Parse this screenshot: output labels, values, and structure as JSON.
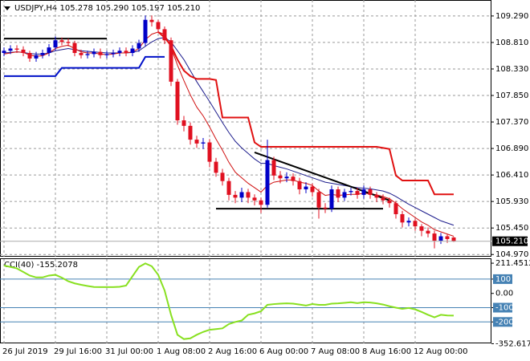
{
  "chart_data": [
    {
      "type": "candlestick",
      "title": "USDJPY,H4  105.278 105.290 105.197 105.210",
      "categories": [
        "26 Jul 2019",
        null,
        null,
        null,
        null,
        null,
        null,
        null,
        "29 Jul 16:00",
        null,
        null,
        null,
        null,
        null,
        null,
        null,
        "31 Jul 00:00",
        null,
        null,
        null,
        null,
        null,
        null,
        null,
        "1 Aug 08:00",
        null,
        null,
        null,
        null,
        null,
        null,
        null,
        "2 Aug 16:00",
        null,
        null,
        null,
        null,
        null,
        null,
        null,
        "6 Aug 00:00",
        null,
        null,
        null,
        null,
        null,
        null,
        null,
        "7 Aug 08:00",
        null,
        null,
        null,
        null,
        null,
        null,
        null,
        "8 Aug 16:00",
        null,
        null,
        null,
        null,
        null,
        null,
        null,
        "12 Aug 00:00",
        null,
        null,
        null,
        null,
        null,
        null
      ],
      "open": [
        108.62,
        108.66,
        108.7,
        108.68,
        108.62,
        108.52,
        108.58,
        108.62,
        108.72,
        108.85,
        108.82,
        108.8,
        108.62,
        108.58,
        108.6,
        108.64,
        108.58,
        108.6,
        108.62,
        108.66,
        108.62,
        108.7,
        108.8,
        109.22,
        109.18,
        109.05,
        108.85,
        108.1,
        107.4,
        107.3,
        107.05,
        106.98,
        107.0,
        106.65,
        106.45,
        106.3,
        106.05,
        106.0,
        106.1,
        106.0,
        105.95,
        105.87,
        106.68,
        106.4,
        106.35,
        106.38,
        106.3,
        106.15,
        106.2,
        106.1,
        105.82,
        105.8,
        106.15,
        106.0,
        106.1,
        106.12,
        106.05,
        106.15,
        106.05,
        106.0,
        105.95,
        105.9,
        105.7,
        105.55,
        105.58,
        105.48,
        105.4,
        105.35,
        105.22,
        105.3,
        105.278
      ],
      "high": [
        108.72,
        108.76,
        108.76,
        108.74,
        108.66,
        108.64,
        108.68,
        108.78,
        108.92,
        108.9,
        108.88,
        108.84,
        108.68,
        108.66,
        108.7,
        108.7,
        108.66,
        108.68,
        108.72,
        108.72,
        108.76,
        108.86,
        109.3,
        109.3,
        109.22,
        109.1,
        108.9,
        108.15,
        107.48,
        107.36,
        107.12,
        107.08,
        107.06,
        106.72,
        106.52,
        106.36,
        106.12,
        106.18,
        106.16,
        106.06,
        106.0,
        107.05,
        106.74,
        106.48,
        106.46,
        106.44,
        106.36,
        106.28,
        106.26,
        106.16,
        105.9,
        106.22,
        106.2,
        106.16,
        106.18,
        106.18,
        106.22,
        106.2,
        106.1,
        106.06,
        106.0,
        105.94,
        105.76,
        105.64,
        105.62,
        105.52,
        105.46,
        105.4,
        105.36,
        105.34,
        105.29
      ],
      "low": [
        108.56,
        108.6,
        108.62,
        108.56,
        108.46,
        108.46,
        108.52,
        108.56,
        108.66,
        108.76,
        108.74,
        108.56,
        108.52,
        108.52,
        108.54,
        108.52,
        108.52,
        108.54,
        108.56,
        108.56,
        108.56,
        108.64,
        108.74,
        109.1,
        108.98,
        108.78,
        108.02,
        107.32,
        107.2,
        106.96,
        106.9,
        106.88,
        106.55,
        106.38,
        106.22,
        105.95,
        105.9,
        105.92,
        105.9,
        105.86,
        105.72,
        105.82,
        106.32,
        106.26,
        106.28,
        106.22,
        106.06,
        106.08,
        106.02,
        105.62,
        105.72,
        105.74,
        105.92,
        105.94,
        106.04,
        105.98,
        105.98,
        105.98,
        105.92,
        105.88,
        105.82,
        105.62,
        105.46,
        105.48,
        105.4,
        105.3,
        105.28,
        105.08,
        105.16,
        105.18,
        105.197
      ],
      "close": [
        108.66,
        108.7,
        108.68,
        108.62,
        108.52,
        108.58,
        108.62,
        108.72,
        108.85,
        108.82,
        108.8,
        108.62,
        108.58,
        108.6,
        108.64,
        108.58,
        108.6,
        108.62,
        108.66,
        108.62,
        108.7,
        108.8,
        109.22,
        109.18,
        109.05,
        108.85,
        108.1,
        107.4,
        107.3,
        107.05,
        106.98,
        107.0,
        106.65,
        106.45,
        106.3,
        106.05,
        106.0,
        106.1,
        106.0,
        105.95,
        105.87,
        106.68,
        106.4,
        106.35,
        106.38,
        106.3,
        106.15,
        106.2,
        106.1,
        105.82,
        105.8,
        106.15,
        106.0,
        106.1,
        106.12,
        106.05,
        106.15,
        106.05,
        106.0,
        105.95,
        105.9,
        105.7,
        105.55,
        105.58,
        105.48,
        105.4,
        105.35,
        105.22,
        105.3,
        105.25,
        105.21
      ],
      "up_color": "#0000c8",
      "down_color": "#e01020",
      "lines": [
        {
          "color": "#1c1c8c",
          "values": [
            108.62,
            108.63,
            108.64,
            108.63,
            108.61,
            108.6,
            108.6,
            108.62,
            108.66,
            108.68,
            108.7,
            108.68,
            108.66,
            108.65,
            108.64,
            108.63,
            108.62,
            108.62,
            108.62,
            108.62,
            108.63,
            108.66,
            108.74,
            108.82,
            108.88,
            108.9,
            108.82,
            108.66,
            108.5,
            108.3,
            108.1,
            107.92,
            107.74,
            107.55,
            107.36,
            107.18,
            107.02,
            106.9,
            106.8,
            106.7,
            106.62,
            106.62,
            106.58,
            106.55,
            106.52,
            106.48,
            106.44,
            106.4,
            106.36,
            106.32,
            106.28,
            106.26,
            106.24,
            106.22,
            106.2,
            106.18,
            106.17,
            106.16,
            106.14,
            106.12,
            106.08,
            106.02,
            105.95,
            105.88,
            105.82,
            105.76,
            105.7,
            105.64,
            105.58,
            105.54,
            105.5
          ]
        },
        {
          "color": "#d01010",
          "values": [
            108.6,
            108.62,
            108.64,
            108.63,
            108.58,
            108.56,
            108.57,
            108.62,
            108.7,
            108.74,
            108.76,
            108.7,
            108.64,
            108.62,
            108.62,
            108.6,
            108.59,
            108.6,
            108.62,
            108.62,
            108.64,
            108.7,
            108.86,
            108.96,
            109.0,
            108.96,
            108.72,
            108.4,
            108.12,
            107.86,
            107.64,
            107.48,
            107.28,
            107.06,
            106.86,
            106.64,
            106.46,
            106.36,
            106.26,
            106.18,
            106.1,
            106.22,
            106.28,
            106.3,
            106.32,
            106.32,
            106.28,
            106.26,
            106.22,
            106.12,
            106.04,
            106.06,
            106.04,
            106.05,
            106.06,
            106.06,
            106.08,
            106.07,
            106.05,
            106.02,
            105.98,
            105.9,
            105.8,
            105.72,
            105.64,
            105.56,
            105.5,
            105.42,
            105.38,
            105.34,
            105.3
          ]
        },
        {
          "color": "#e01010",
          "width": 2,
          "values": [
            null,
            null,
            null,
            null,
            null,
            null,
            null,
            null,
            null,
            null,
            null,
            null,
            null,
            null,
            null,
            null,
            null,
            null,
            null,
            null,
            null,
            null,
            null,
            null,
            109.0,
            108.9,
            108.75,
            108.5,
            108.3,
            108.2,
            108.15,
            108.15,
            108.15,
            108.13,
            107.45,
            107.45,
            107.45,
            107.45,
            107.45,
            107.0,
            106.92,
            106.92,
            106.92,
            106.92,
            106.92,
            106.92,
            106.92,
            106.92,
            106.92,
            106.92,
            106.92,
            106.92,
            106.92,
            106.92,
            106.92,
            106.92,
            106.92,
            106.92,
            106.92,
            106.9,
            106.88,
            106.4,
            106.31,
            106.31,
            106.31,
            106.31,
            106.31,
            106.06,
            106.06,
            106.06,
            106.06
          ]
        },
        {
          "color": "#0010c8",
          "width": 2,
          "values": [
            108.2,
            108.2,
            108.2,
            108.2,
            108.2,
            108.2,
            108.2,
            108.2,
            108.2,
            108.35,
            108.35,
            108.35,
            108.35,
            108.35,
            108.35,
            108.35,
            108.35,
            108.35,
            108.35,
            108.35,
            108.35,
            108.35,
            108.55,
            108.55,
            108.55,
            108.55,
            null,
            null,
            null,
            null,
            null,
            null,
            null,
            null,
            null,
            null,
            null,
            null,
            null,
            null,
            null,
            null,
            null,
            null,
            null,
            null,
            null,
            null,
            null,
            null,
            null,
            null,
            null,
            null,
            null,
            null,
            null,
            null,
            null,
            null,
            null,
            null,
            null,
            null,
            null,
            null,
            null,
            null,
            null,
            null,
            null
          ]
        }
      ],
      "trendlines": [
        {
          "x": [
            0,
            16
          ],
          "y": [
            108.88,
            108.88
          ]
        },
        {
          "x": [
            33,
            59
          ],
          "y": [
            105.8,
            105.8
          ]
        },
        {
          "x": [
            39,
            60
          ],
          "y": [
            106.82,
            105.95
          ]
        }
      ],
      "last_price": {
        "value": 105.21,
        "label": "105.210"
      },
      "ylim": [
        104.93,
        109.55
      ],
      "yticks": [
        {
          "value": 109.29,
          "label": "109.290"
        },
        {
          "value": 108.81,
          "label": "108.810"
        },
        {
          "value": 108.33,
          "label": "108.330"
        },
        {
          "value": 107.85,
          "label": "107.850"
        },
        {
          "value": 107.37,
          "label": "107.370"
        },
        {
          "value": 106.89,
          "label": "106.890"
        },
        {
          "value": 106.41,
          "label": "106.410"
        },
        {
          "value": 105.93,
          "label": "105.930"
        },
        {
          "value": 105.45,
          "label": "105.450"
        },
        {
          "value": 104.97,
          "label": "104.970"
        }
      ],
      "grid": true
    },
    {
      "type": "line",
      "title": "CCI(40) -155.2078",
      "color": "#88e020",
      "values": [
        195,
        185,
        175,
        150,
        125,
        112,
        112,
        125,
        130,
        110,
        85,
        70,
        60,
        52,
        45,
        44,
        44,
        44,
        46,
        55,
        120,
        185,
        210,
        190,
        130,
        20,
        -150,
        -290,
        -320,
        -315,
        -290,
        -270,
        -255,
        -250,
        -245,
        -215,
        -200,
        -190,
        -150,
        -140,
        -125,
        -80,
        -75,
        -72,
        -70,
        -72,
        -78,
        -85,
        -75,
        -80,
        -80,
        -72,
        -70,
        -66,
        -62,
        -68,
        -62,
        -64,
        -70,
        -78,
        -90,
        -100,
        -108,
        -102,
        -112,
        -130,
        -150,
        -168,
        -150,
        -155,
        -155.2078
      ],
      "levels": [
        100,
        -100,
        -200
      ],
      "level_color": "#4682b4",
      "ylim": [
        -350,
        240
      ],
      "yticks": [
        211.4512,
        100,
        {
          "value": 0,
          "label": "0.00"
        },
        -100,
        -200,
        -352.6178
      ]
    }
  ]
}
